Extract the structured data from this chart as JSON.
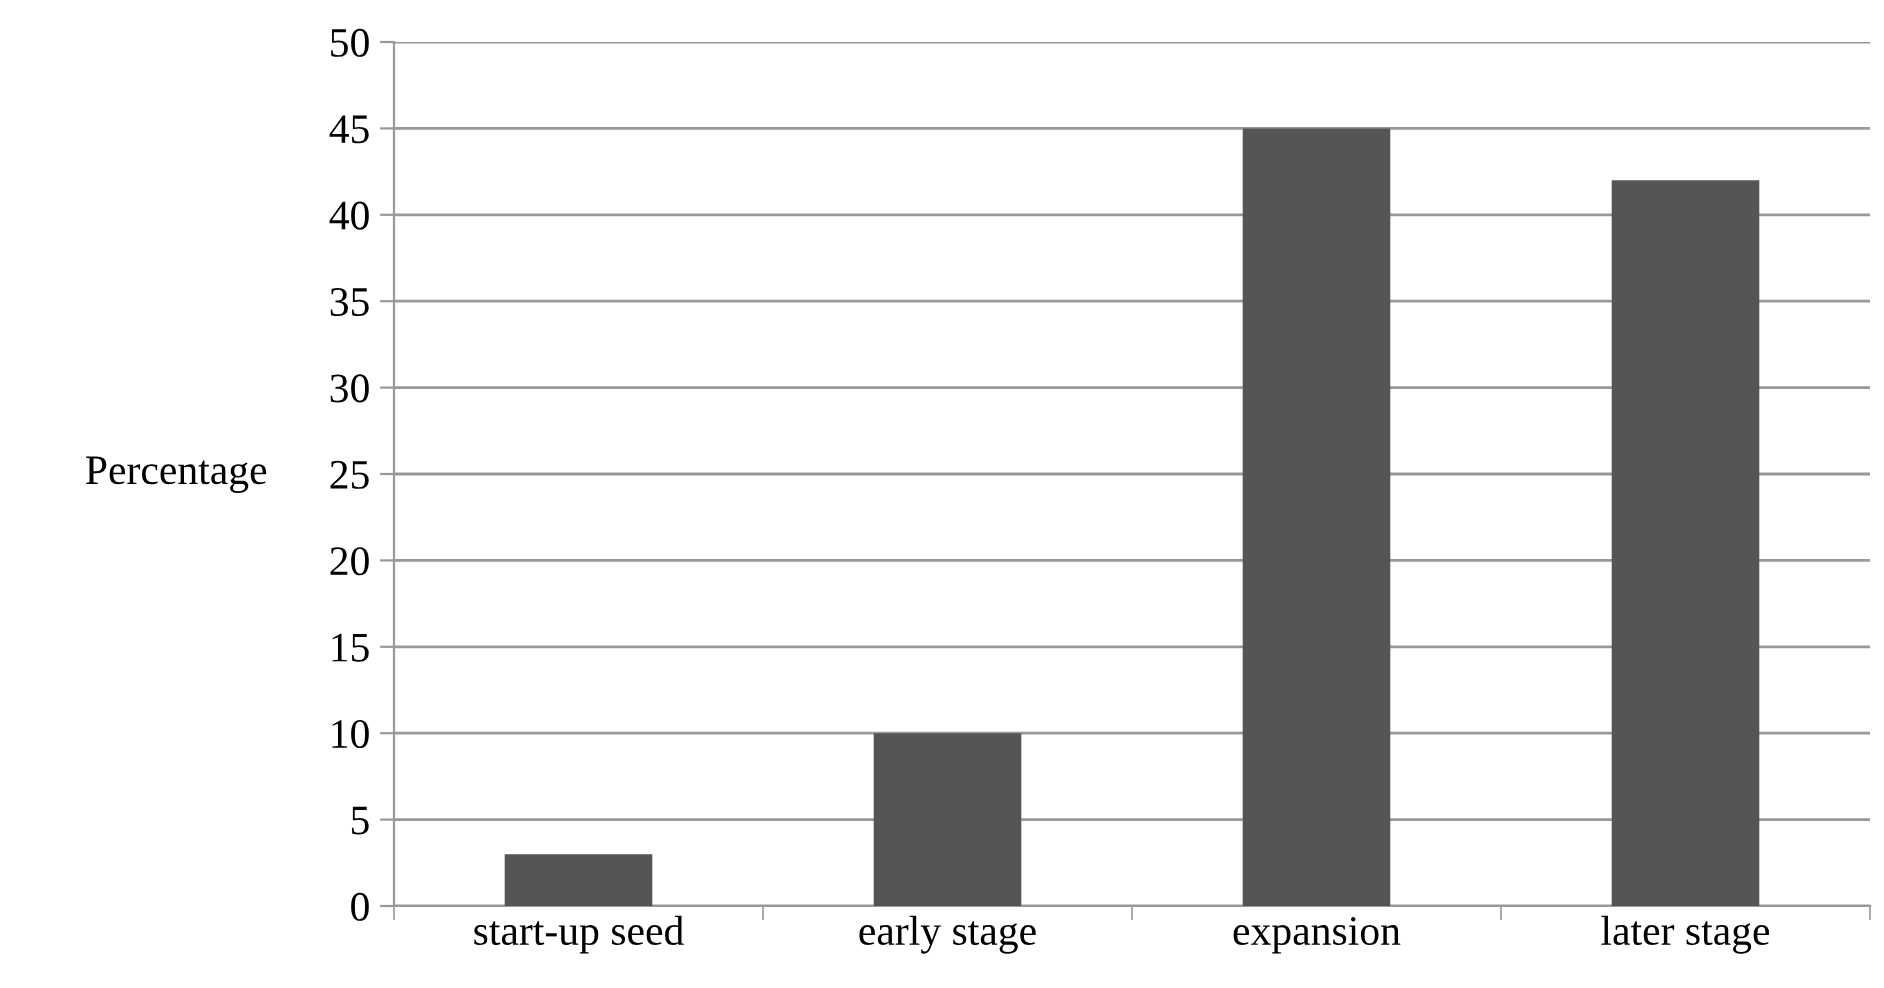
{
  "chart_data": {
    "type": "bar",
    "ylabel": "Percentage",
    "categories": [
      "start-up seed",
      "early stage",
      "expansion",
      "later stage"
    ],
    "values": [
      3,
      10,
      45,
      42
    ],
    "color": "#555555",
    "ylim": [
      0,
      50
    ],
    "yticks": [
      0,
      5,
      10,
      15,
      20,
      25,
      30,
      35,
      40,
      45,
      50
    ],
    "grid": "y",
    "legend": false
  }
}
